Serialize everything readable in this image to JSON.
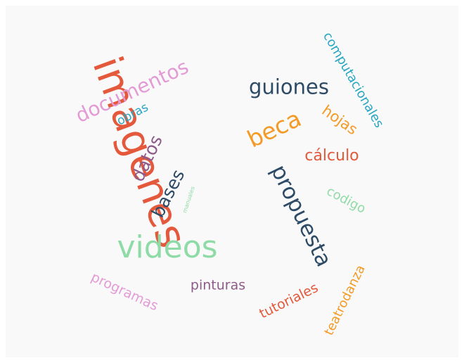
{
  "palette": {
    "pink": "#e39bd6",
    "teal": "#27a6c1",
    "navy": "#2d4a66",
    "orange_red": "#e4583b",
    "orange": "#f39a27",
    "purple": "#8e5a8a",
    "mint": "#8fdba7"
  },
  "words": [
    {
      "id": "imagenes",
      "text": "imagenes",
      "color": "#e4583b"
    },
    {
      "id": "videos",
      "text": "videos",
      "color": "#8fdba7"
    },
    {
      "id": "propuesta",
      "text": "propuesta",
      "color": "#2d4a66"
    },
    {
      "id": "documentos",
      "text": "documentos",
      "color": "#e39bd6"
    },
    {
      "id": "guiones",
      "text": "guiones",
      "color": "#2d4a66"
    },
    {
      "id": "beca",
      "text": "beca",
      "color": "#f39a27"
    },
    {
      "id": "computacionales",
      "text": "computacionales",
      "color": "#27a6c1"
    },
    {
      "id": "datos",
      "text": "datos",
      "color": "#8e5a8a"
    },
    {
      "id": "bases",
      "text": "bases",
      "color": "#2d4a66"
    },
    {
      "id": "hojas",
      "text": "hojas",
      "color": "#f39a27"
    },
    {
      "id": "calculo",
      "text": "cálculo",
      "color": "#e4583b"
    },
    {
      "id": "codigo",
      "text": "codigo",
      "color": "#8fdba7"
    },
    {
      "id": "obras",
      "text": "obras",
      "color": "#27a6c1"
    },
    {
      "id": "manuales",
      "text": "manuales",
      "color": "#8fdba7"
    },
    {
      "id": "programas",
      "text": "programas",
      "color": "#e39bd6"
    },
    {
      "id": "pinturas",
      "text": "pinturas",
      "color": "#8e5a8a"
    },
    {
      "id": "tutoriales",
      "text": "tutoriales",
      "color": "#e4583b"
    },
    {
      "id": "teatrodanza",
      "text": "teatrodanza",
      "color": "#f39a27"
    }
  ]
}
